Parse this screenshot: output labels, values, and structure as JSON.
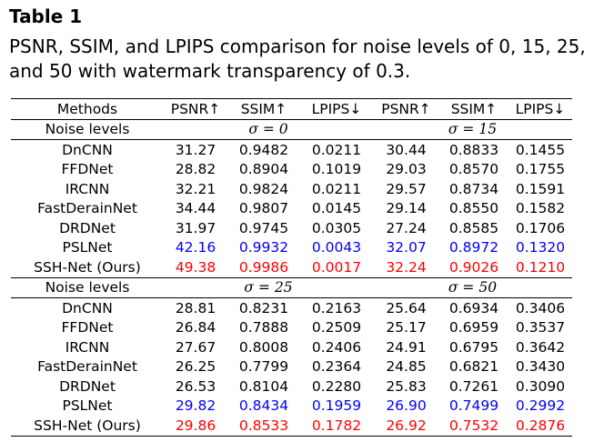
{
  "title": "Table 1",
  "caption": "PSNR, SSIM, and LPIPS comparison for noise levels of 0, 15, 25, and 50 with watermark transparency of 0.3.",
  "headers": [
    "Methods",
    "PSNR↑",
    "SSIM↑",
    "LPIPS↓",
    "PSNR↑",
    "SSIM↑",
    "LPIPS↓"
  ],
  "colors": {
    "blue": "#0000ff",
    "red": "#ff0000"
  },
  "groups": [
    {
      "label": "Noise levels",
      "sigma_left": "σ = 0",
      "sigma_right": "σ = 15",
      "rows": [
        {
          "method": "DnCNN",
          "vals": [
            "31.27",
            "0.9482",
            "0.0211",
            "30.44",
            "0.8833",
            "0.1455"
          ]
        },
        {
          "method": "FFDNet",
          "vals": [
            "28.82",
            "0.8904",
            "0.1019",
            "29.03",
            "0.8570",
            "0.1755"
          ]
        },
        {
          "method": "IRCNN",
          "vals": [
            "32.21",
            "0.9824",
            "0.0211",
            "29.57",
            "0.8734",
            "0.1591"
          ]
        },
        {
          "method": "FastDerainNet",
          "vals": [
            "34.44",
            "0.9807",
            "0.0145",
            "29.14",
            "0.8550",
            "0.1582"
          ]
        },
        {
          "method": "DRDNet",
          "vals": [
            "31.97",
            "0.9745",
            "0.0305",
            "27.24",
            "0.8585",
            "0.1706"
          ]
        },
        {
          "method": "PSLNet",
          "vals": [
            "42.16",
            "0.9932",
            "0.0043",
            "32.07",
            "0.8972",
            "0.1320"
          ]
        },
        {
          "method": "SSH-Net (Ours)",
          "vals": [
            "49.38",
            "0.9986",
            "0.0017",
            "32.24",
            "0.9026",
            "0.1210"
          ]
        }
      ]
    },
    {
      "label": "Noise levels",
      "sigma_left": "σ = 25",
      "sigma_right": "σ = 50",
      "rows": [
        {
          "method": "DnCNN",
          "vals": [
            "28.81",
            "0.8231",
            "0.2163",
            "25.64",
            "0.6934",
            "0.3406"
          ]
        },
        {
          "method": "FFDNet",
          "vals": [
            "26.84",
            "0.7888",
            "0.2509",
            "25.17",
            "0.6959",
            "0.3537"
          ]
        },
        {
          "method": "IRCNN",
          "vals": [
            "27.67",
            "0.8008",
            "0.2406",
            "24.91",
            "0.6795",
            "0.3642"
          ]
        },
        {
          "method": "FastDerainNet",
          "vals": [
            "26.25",
            "0.7799",
            "0.2364",
            "24.85",
            "0.6821",
            "0.3430"
          ]
        },
        {
          "method": "DRDNet",
          "vals": [
            "26.53",
            "0.8104",
            "0.2280",
            "25.83",
            "0.7261",
            "0.3090"
          ]
        },
        {
          "method": "PSLNet",
          "vals": [
            "29.82",
            "0.8434",
            "0.1959",
            "26.90",
            "0.7499",
            "0.2992"
          ]
        },
        {
          "method": "SSH-Net (Ours)",
          "vals": [
            "29.86",
            "0.8533",
            "0.1782",
            "26.92",
            "0.7532",
            "0.2876"
          ]
        }
      ]
    }
  ]
}
